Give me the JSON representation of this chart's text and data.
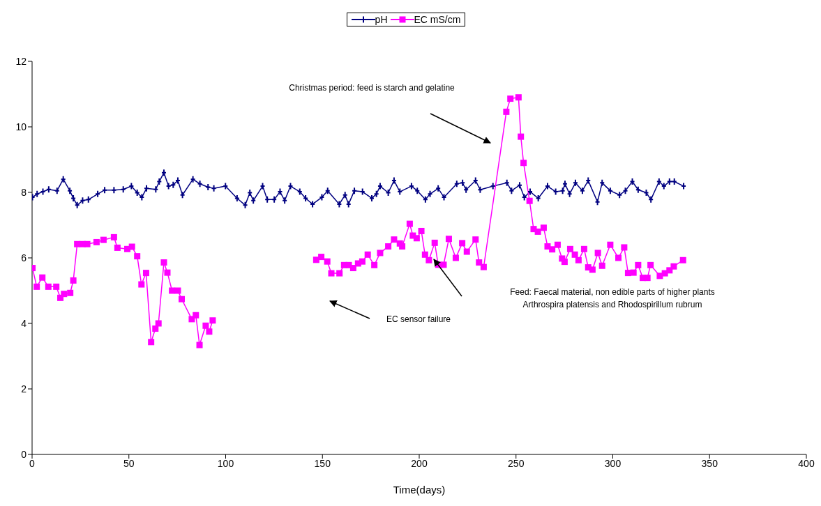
{
  "chart_data": {
    "type": "line",
    "xlabel": "Time(days)",
    "xlim": [
      0,
      400
    ],
    "xticks": [
      0,
      50,
      100,
      150,
      200,
      250,
      300,
      350,
      400
    ],
    "ylim": [
      0,
      12
    ],
    "yticks": [
      0,
      2,
      4,
      6,
      8,
      10,
      12
    ],
    "grid": false,
    "legend": "top",
    "line_style": "solid",
    "series": [
      {
        "name": "pH",
        "color": "#000080",
        "marker": "cross",
        "x": [
          0.2,
          2.6,
          5.6,
          8.6,
          12.9,
          16.1,
          19.5,
          21.3,
          23.3,
          26.1,
          29.1,
          33.9,
          37.5,
          42.3,
          47.1,
          51.3,
          54.3,
          56.7,
          59.1,
          63.9,
          65.7,
          68.1,
          70.5,
          72.9,
          75.3,
          77.7,
          83.1,
          86.7,
          90.9,
          93.9,
          99.9,
          105.9,
          110.1,
          112.5,
          114.3,
          119.1,
          121.5,
          125.1,
          128.1,
          130.5,
          133.5,
          138.3,
          141.3,
          144.9,
          149.7,
          152.7,
          158.7,
          161.7,
          163.5,
          166.5,
          170.7,
          175.5,
          177.9,
          179.8,
          184.0,
          187.0,
          190.0,
          196.0,
          199.0,
          203.2,
          205.6,
          209.8,
          212.8,
          219.4,
          222.4,
          224.2,
          229.1,
          231.5,
          238.1,
          245.3,
          247.7,
          251.9,
          254.3,
          257.3,
          261.5,
          266.3,
          270.5,
          274.1,
          275.3,
          277.7,
          280.7,
          284.3,
          287.3,
          292.1,
          294.5,
          298.7,
          303.5,
          306.5,
          310.1,
          313.1,
          317.3,
          319.7,
          323.9,
          326.4,
          329.3,
          331.8,
          336.6
        ],
        "values": [
          7.85,
          7.95,
          8.02,
          8.09,
          8.05,
          8.4,
          8.05,
          7.82,
          7.61,
          7.75,
          7.78,
          7.95,
          8.07,
          8.07,
          8.09,
          8.19,
          7.99,
          7.85,
          8.12,
          8.09,
          8.33,
          8.6,
          8.19,
          8.23,
          8.36,
          7.92,
          8.4,
          8.26,
          8.16,
          8.12,
          8.19,
          7.82,
          7.61,
          7.99,
          7.75,
          8.19,
          7.78,
          7.78,
          8.02,
          7.75,
          8.19,
          8.02,
          7.82,
          7.64,
          7.85,
          8.05,
          7.64,
          7.92,
          7.64,
          8.05,
          8.02,
          7.82,
          7.95,
          8.19,
          7.99,
          8.36,
          8.02,
          8.19,
          8.05,
          7.78,
          7.95,
          8.12,
          7.85,
          8.26,
          8.29,
          8.08,
          8.36,
          8.08,
          8.19,
          8.29,
          8.05,
          8.22,
          7.85,
          8.02,
          7.82,
          8.19,
          8.02,
          8.05,
          8.26,
          7.95,
          8.29,
          8.05,
          8.36,
          7.71,
          8.29,
          8.05,
          7.92,
          8.05,
          8.33,
          8.08,
          7.99,
          7.78,
          8.33,
          8.19,
          8.33,
          8.33,
          8.19
        ]
      },
      {
        "name": "EC mS/cm",
        "color": "#ff00ff",
        "marker": "square",
        "x": [
          0.2,
          2.4,
          5.3,
          8.4,
          12.5,
          14.6,
          16.5,
          19.7,
          21.3,
          23.3,
          26.1,
          28.5,
          33.3,
          36.9,
          42.3,
          44.1,
          49.2,
          51.6,
          54.3,
          56.5,
          58.9,
          61.5,
          63.7,
          65.3,
          68.1,
          69.9,
          72.3,
          75.3,
          77.3,
          82.5,
          84.6,
          86.5,
          89.7,
          91.5,
          93.3,
          120,
          146.8,
          149.4,
          152.5,
          154.6,
          158.8,
          161.2,
          163.6,
          165.9,
          168.4,
          170.6,
          173.4,
          176.8,
          179.8,
          184.0,
          187.0,
          190.0,
          191.2,
          195.1,
          196.7,
          198.7,
          201.1,
          203.0,
          205.0,
          208.0,
          209.8,
          212.6,
          215.3,
          218.9,
          222.2,
          224.6,
          229.1,
          230.9,
          233.3,
          245.0,
          247.1,
          251.3,
          252.5,
          253.9,
          257.0,
          259.1,
          261.3,
          264.3,
          266.3,
          268.7,
          271.5,
          273.8,
          275.1,
          278.0,
          280.4,
          282.3,
          285.2,
          287.3,
          289.5,
          292.3,
          294.5,
          298.7,
          302.9,
          305.9,
          307.9,
          310.7,
          313.1,
          315.5,
          317.9,
          319.5,
          324.3,
          326.9,
          329.3,
          331.5,
          336.3
        ],
        "values": [
          5.69,
          5.12,
          5.4,
          5.12,
          5.12,
          4.78,
          4.9,
          4.93,
          5.31,
          6.42,
          6.42,
          6.42,
          6.48,
          6.55,
          6.63,
          6.31,
          6.27,
          6.34,
          6.05,
          5.19,
          5.54,
          3.43,
          3.84,
          4.0,
          5.86,
          5.55,
          5.0,
          5.0,
          4.74,
          4.13,
          4.25,
          3.34,
          3.93,
          3.75,
          4.09,
          null,
          5.94,
          6.03,
          5.89,
          5.53,
          5.53,
          5.78,
          5.78,
          5.69,
          5.83,
          5.89,
          6.1,
          5.78,
          6.15,
          6.35,
          6.56,
          6.44,
          6.35,
          7.04,
          6.68,
          6.6,
          6.82,
          6.1,
          5.93,
          6.46,
          5.79,
          5.79,
          6.58,
          6.0,
          6.45,
          6.19,
          6.56,
          5.86,
          5.72,
          10.46,
          10.86,
          10.9,
          9.7,
          8.9,
          7.74,
          6.88,
          6.8,
          6.92,
          6.35,
          6.26,
          6.4,
          5.98,
          5.88,
          6.27,
          6.1,
          5.93,
          6.27,
          5.71,
          5.64,
          6.15,
          5.76,
          6.4,
          6.0,
          6.32,
          5.54,
          5.55,
          5.78,
          5.39,
          5.39,
          5.78,
          5.45,
          5.53,
          5.62,
          5.74,
          5.93
        ]
      }
    ],
    "annotations": [
      "Christmas period: feed is starch and gelatine",
      "EC sensor failure",
      "Feed: Faecal material, non edible parts of higher plants\nArthrospira platensis  and Rhodospirillum rubrum"
    ]
  }
}
